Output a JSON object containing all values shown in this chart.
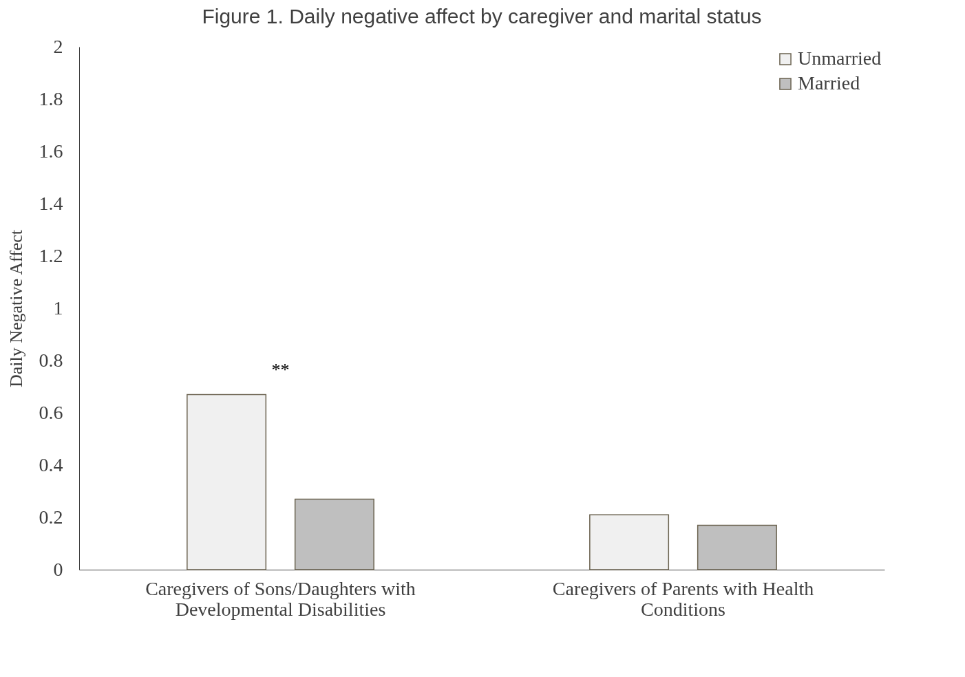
{
  "chart_data": {
    "type": "bar",
    "title": "Figure 1. Daily negative affect by caregiver and marital status",
    "ylabel": "Daily Negative Affect",
    "categories": [
      "Caregivers of Sons/Daughters with Developmental Disabilities",
      "Caregivers of Parents with Health Conditions"
    ],
    "series": [
      {
        "name": "Unmarried",
        "color": "#f0f0f0",
        "values": [
          0.67,
          0.21
        ]
      },
      {
        "name": "Married",
        "color": "#bfbfbf",
        "values": [
          0.27,
          0.17
        ]
      }
    ],
    "ylim": [
      0,
      2
    ],
    "yticks": [
      0,
      0.2,
      0.4,
      0.6,
      0.8,
      1,
      1.2,
      1.4,
      1.6,
      1.8,
      2
    ],
    "annotations": [
      "**"
    ],
    "legend": "top right",
    "grid": false
  }
}
